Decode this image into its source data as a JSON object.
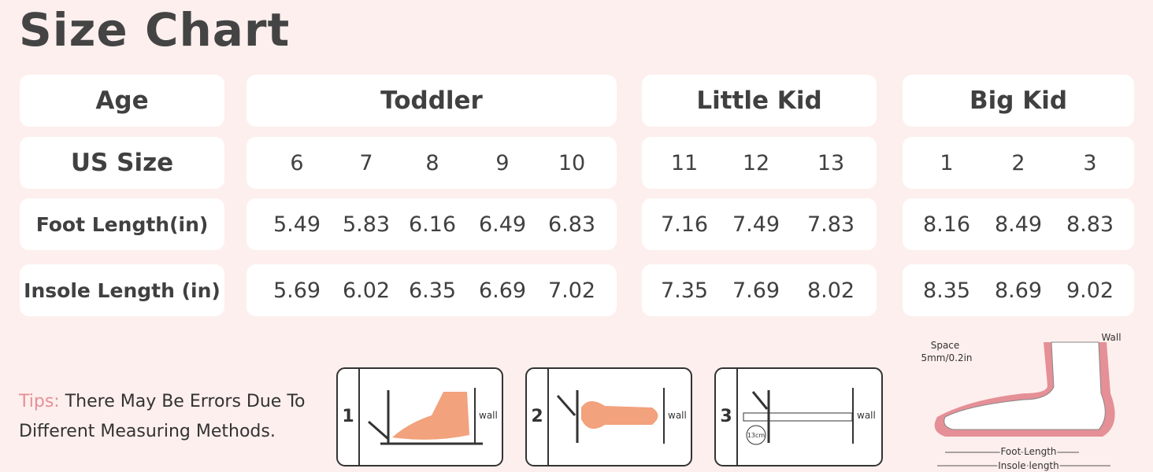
{
  "title": "Size Chart",
  "table": {
    "header": [
      "Age",
      "Toddler",
      "Little Kid",
      "Big Kid"
    ],
    "rows": [
      {
        "label": "US Size",
        "groups": [
          [
            "6",
            "7",
            "8",
            "9",
            "10"
          ],
          [
            "11",
            "12",
            "13"
          ],
          [
            "1",
            "2",
            "3"
          ]
        ]
      },
      {
        "label": "Foot Length(in)",
        "groups": [
          [
            "5.49",
            "5.83",
            "6.16",
            "6.49",
            "6.83"
          ],
          [
            "7.16",
            "7.49",
            "7.83"
          ],
          [
            "8.16",
            "8.49",
            "8.83"
          ]
        ]
      },
      {
        "label": "Insole Length (in)",
        "groups": [
          [
            "5.69",
            "6.02",
            "6.35",
            "6.69",
            "7.02"
          ],
          [
            "7.35",
            "7.69",
            "8.02"
          ],
          [
            "8.35",
            "8.69",
            "9.02"
          ]
        ]
      }
    ]
  },
  "tips": {
    "label": "Tips:",
    "text": "There May Be Errors Due To Different Measuring Methods."
  },
  "steps": [
    {
      "number": "1",
      "wall": "wall"
    },
    {
      "number": "2",
      "wall": "wall"
    },
    {
      "number": "3",
      "wall": "wall",
      "mark": "13cm"
    }
  ],
  "foot_diagram": {
    "space": "Space",
    "space_size": "5mm/0.2in",
    "wall": "Wall",
    "foot_length": "Foot Length",
    "insole_length": "Insole length"
  }
}
